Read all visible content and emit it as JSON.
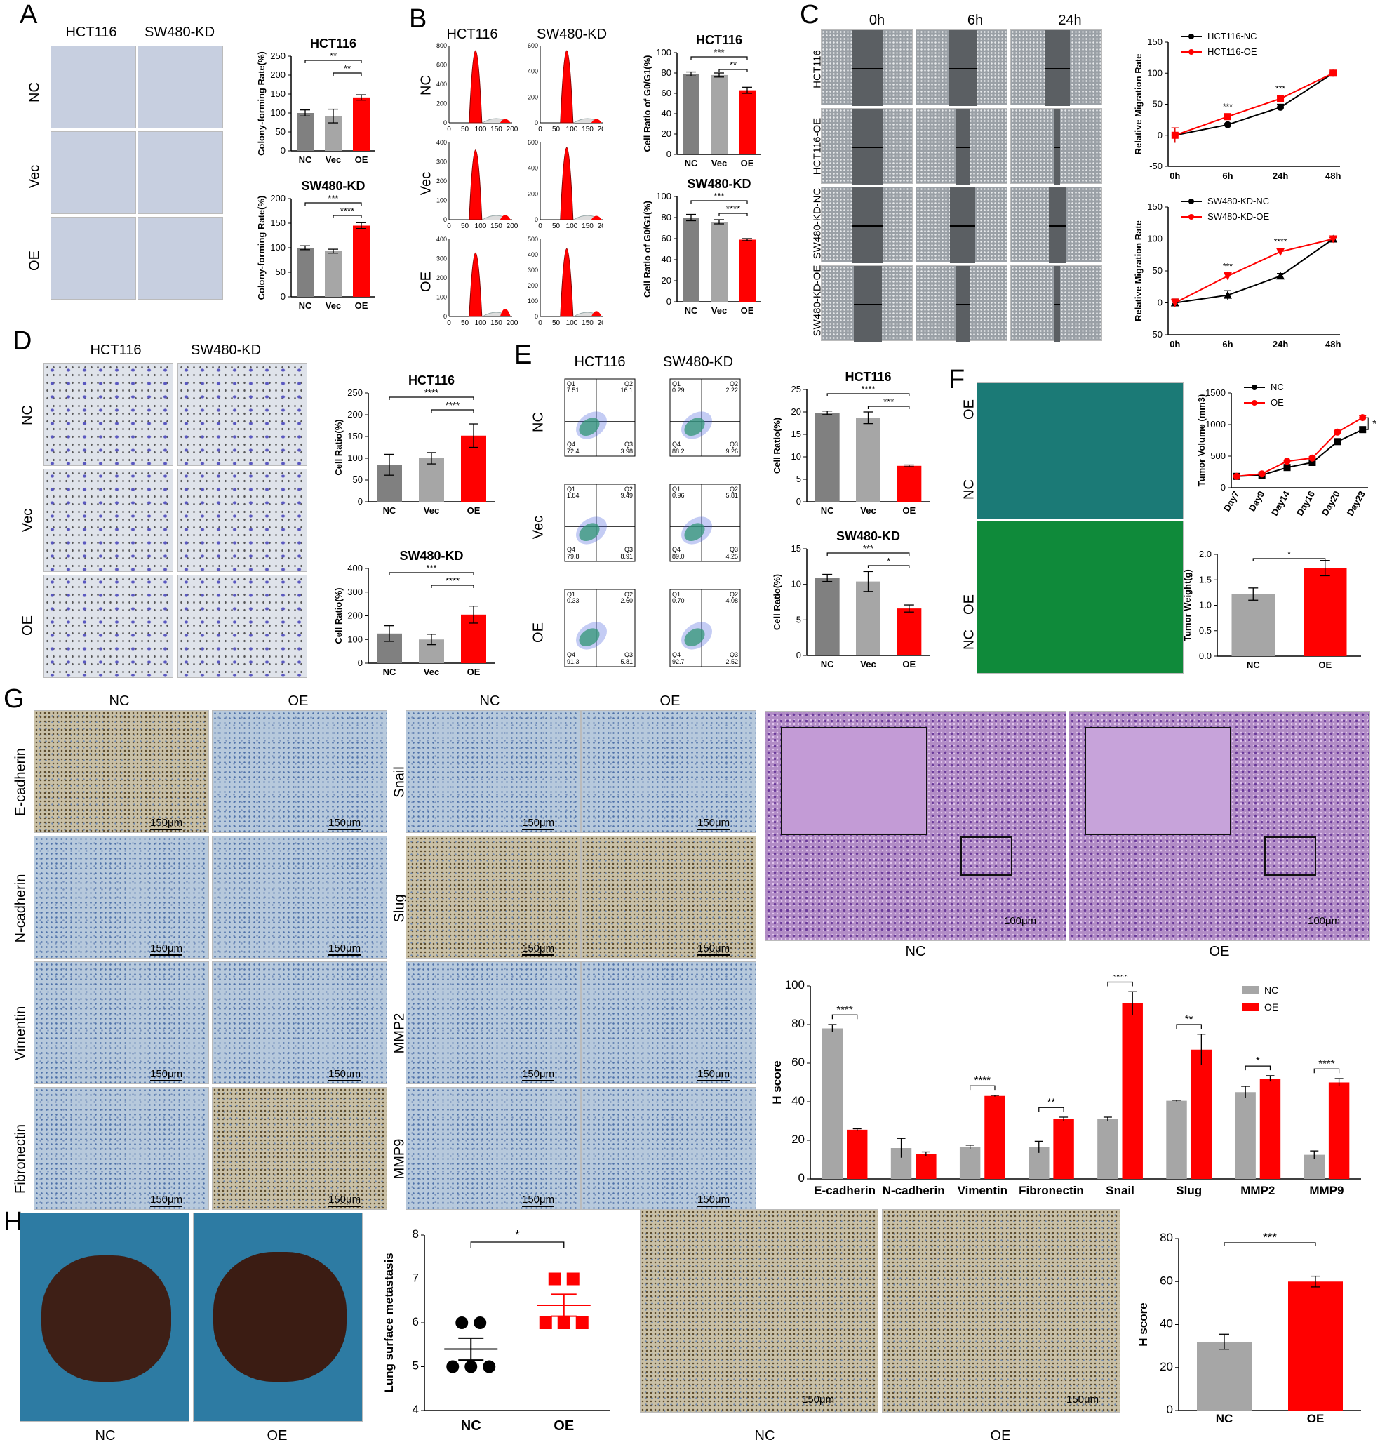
{
  "panels": {
    "A": "A",
    "B": "B",
    "C": "C",
    "D": "D",
    "E": "E",
    "F": "F",
    "G": "G",
    "H": "H"
  },
  "labels": {
    "hct116": "HCT116",
    "sw480kd": "SW480-KD",
    "nc": "NC",
    "vec": "Vec",
    "oe": "OE",
    "t0": "0h",
    "t6": "6h",
    "t24": "24h",
    "row_hct116": "HCT116",
    "row_hct116oe": "HCT116-OE",
    "row_swnc": "SW480-KD-NC",
    "row_swoe": "SW480-KD-OE",
    "ecad": "E-cadherin",
    "ncad": "N-cadherin",
    "vim": "Vimentin",
    "fib": "Fibronectin",
    "snail": "Snail",
    "slug": "Slug",
    "mmp2": "MMP2",
    "mmp9": "MMP9",
    "scale150": "150μm",
    "scale100": "100μm",
    "q1": "Q1",
    "q2": "Q2",
    "q3": "Q3",
    "q4": "Q4"
  },
  "flow": [
    [
      "7.51",
      "16.1",
      "3.98",
      "72.4"
    ],
    [
      "0.29",
      "2.22",
      "9.26",
      "88.2"
    ],
    [
      "1.84",
      "9.49",
      "8.91",
      "79.8"
    ],
    [
      "0.96",
      "5.81",
      "4.25",
      "89.0"
    ],
    [
      "0.33",
      "2.60",
      "5.81",
      "91.3"
    ],
    [
      "0.70",
      "4.08",
      "2.52",
      "92.7"
    ]
  ],
  "chart_data": [
    {
      "id": "A1",
      "type": "bar",
      "title": "HCT116",
      "ylabel": "Colony-forming Rate(%)",
      "categories": [
        "NC",
        "Vec",
        "OE"
      ],
      "values": [
        100,
        92,
        141
      ],
      "err": [
        8,
        18,
        7
      ],
      "ylim": [
        0,
        250
      ],
      "yticks": [
        0,
        50,
        100,
        150,
        200,
        250
      ],
      "colors": [
        "#808080",
        "#a6a6a6",
        "#ff0000"
      ],
      "sig": [
        {
          "a": 0,
          "b": 2,
          "label": "**"
        },
        {
          "a": 1,
          "b": 2,
          "label": "**"
        }
      ]
    },
    {
      "id": "A2",
      "type": "bar",
      "title": "SW480-KD",
      "ylabel": "Colony-forming Rate(%)",
      "categories": [
        "NC",
        "Vec",
        "OE"
      ],
      "values": [
        100,
        93,
        145
      ],
      "err": [
        4,
        4,
        6
      ],
      "ylim": [
        0,
        200
      ],
      "yticks": [
        0,
        50,
        100,
        150,
        200
      ],
      "colors": [
        "#808080",
        "#a6a6a6",
        "#ff0000"
      ],
      "sig": [
        {
          "a": 0,
          "b": 2,
          "label": "***"
        },
        {
          "a": 1,
          "b": 2,
          "label": "****"
        }
      ]
    },
    {
      "id": "B1",
      "type": "bar",
      "title": "HCT116",
      "ylabel": "Cell Ratio of G0/G1(%)",
      "categories": [
        "NC",
        "Vec",
        "OE"
      ],
      "values": [
        79,
        78,
        63
      ],
      "err": [
        2,
        2,
        3
      ],
      "ylim": [
        0,
        100
      ],
      "yticks": [
        0,
        20,
        40,
        60,
        80,
        100
      ],
      "colors": [
        "#808080",
        "#a6a6a6",
        "#ff0000"
      ],
      "sig": [
        {
          "a": 0,
          "b": 2,
          "label": "***"
        },
        {
          "a": 1,
          "b": 2,
          "label": "**"
        }
      ]
    },
    {
      "id": "B2",
      "type": "bar",
      "title": "SW480-KD",
      "ylabel": "Cell Ratio of G0/G1(%)",
      "categories": [
        "NC",
        "Vec",
        "OE"
      ],
      "values": [
        80,
        76,
        59
      ],
      "err": [
        3,
        2,
        1
      ],
      "ylim": [
        0,
        100
      ],
      "yticks": [
        0,
        20,
        40,
        60,
        80,
        100
      ],
      "colors": [
        "#808080",
        "#a6a6a6",
        "#ff0000"
      ],
      "sig": [
        {
          "a": 0,
          "b": 2,
          "label": "***"
        },
        {
          "a": 1,
          "b": 2,
          "label": "****"
        }
      ]
    },
    {
      "id": "C1",
      "type": "line",
      "ylabel": "Relative Migration Rate",
      "categories": [
        "0h",
        "6h",
        "24h",
        "48h"
      ],
      "ylim": [
        -50,
        150
      ],
      "yticks": [
        -50,
        0,
        50,
        100,
        150
      ],
      "series": [
        {
          "name": "HCT116-NC",
          "values": [
            0,
            17,
            45,
            100
          ],
          "err": [
            12,
            2,
            5,
            2
          ],
          "color": "#000000",
          "marker": "circle"
        },
        {
          "name": "HCT116-OE",
          "values": [
            0,
            30,
            59,
            100
          ],
          "err": [
            12,
            3,
            4,
            2
          ],
          "color": "#ff0000",
          "marker": "square"
        }
      ],
      "sig": [
        {
          "x": 1,
          "label": "***"
        },
        {
          "x": 2,
          "label": "***"
        }
      ]
    },
    {
      "id": "C2",
      "type": "line",
      "ylabel": "Relative Migration Rate",
      "categories": [
        "0h",
        "6h",
        "24h",
        "48h"
      ],
      "ylim": [
        -50,
        150
      ],
      "yticks": [
        -50,
        0,
        50,
        100,
        150
      ],
      "series": [
        {
          "name": "SW480-KD-NC",
          "values": [
            0,
            12,
            42,
            100
          ],
          "err": [
            6,
            7,
            4,
            2
          ],
          "color": "#000000",
          "marker": "triangle"
        },
        {
          "name": "SW480-KD-OE",
          "values": [
            0,
            42,
            80,
            100
          ],
          "err": [
            6,
            6,
            5,
            2
          ],
          "color": "#ff0000",
          "marker": "tridown"
        }
      ],
      "sig": [
        {
          "x": 1,
          "label": "***"
        },
        {
          "x": 2,
          "label": "****"
        }
      ]
    },
    {
      "id": "D1",
      "type": "bar",
      "title": "HCT116",
      "ylabel": "Cell Ratio(%)",
      "categories": [
        "NC",
        "Vec",
        "OE"
      ],
      "values": [
        85,
        100,
        152
      ],
      "err": [
        24,
        13,
        27
      ],
      "ylim": [
        0,
        250
      ],
      "yticks": [
        0,
        50,
        100,
        150,
        200,
        250
      ],
      "colors": [
        "#808080",
        "#a6a6a6",
        "#ff0000"
      ],
      "sig": [
        {
          "a": 0,
          "b": 2,
          "label": "****"
        },
        {
          "a": 1,
          "b": 2,
          "label": "****"
        }
      ]
    },
    {
      "id": "D2",
      "type": "bar",
      "title": "SW480-KD",
      "ylabel": "Cell Ratio(%)",
      "categories": [
        "NC",
        "Vec",
        "OE"
      ],
      "values": [
        125,
        100,
        205
      ],
      "err": [
        33,
        22,
        36
      ],
      "ylim": [
        0,
        400
      ],
      "yticks": [
        0,
        100,
        200,
        300,
        400
      ],
      "colors": [
        "#808080",
        "#a6a6a6",
        "#ff0000"
      ],
      "sig": [
        {
          "a": 0,
          "b": 2,
          "label": "***"
        },
        {
          "a": 1,
          "b": 2,
          "label": "****"
        }
      ]
    },
    {
      "id": "E1",
      "type": "bar",
      "title": "HCT116",
      "ylabel": "Cell Ratio(%)",
      "categories": [
        "NC",
        "Vec",
        "OE"
      ],
      "values": [
        19.8,
        18.7,
        8.0
      ],
      "err": [
        0.4,
        1.3,
        0.2
      ],
      "ylim": [
        0,
        25
      ],
      "yticks": [
        0,
        5,
        10,
        15,
        20,
        25
      ],
      "colors": [
        "#808080",
        "#a6a6a6",
        "#ff0000"
      ],
      "sig": [
        {
          "a": 0,
          "b": 2,
          "label": "****"
        },
        {
          "a": 1,
          "b": 2,
          "label": "***"
        }
      ]
    },
    {
      "id": "E2",
      "type": "bar",
      "title": "SW480-KD",
      "ylabel": "Cell Ratio(%)",
      "categories": [
        "NC",
        "Vec",
        "OE"
      ],
      "values": [
        10.9,
        10.4,
        6.6
      ],
      "err": [
        0.5,
        1.4,
        0.5
      ],
      "ylim": [
        0,
        15
      ],
      "yticks": [
        0,
        5,
        10,
        15
      ],
      "colors": [
        "#808080",
        "#a6a6a6",
        "#ff0000"
      ],
      "sig": [
        {
          "a": 0,
          "b": 2,
          "label": "***"
        },
        {
          "a": 1,
          "b": 2,
          "label": "*"
        }
      ]
    },
    {
      "id": "F1",
      "type": "line",
      "ylabel": "Tumor Volume (mm3)",
      "categories": [
        "Day7",
        "Day9",
        "Day14",
        "Day16",
        "Day20",
        "Day23"
      ],
      "ylim": [
        0,
        1500
      ],
      "yticks": [
        0,
        500,
        1000,
        1500
      ],
      "series": [
        {
          "name": "NC",
          "values": [
            180,
            200,
            320,
            400,
            730,
            920
          ],
          "err": [
            10,
            10,
            15,
            20,
            25,
            40
          ],
          "color": "#000000",
          "marker": "square"
        },
        {
          "name": "OE",
          "values": [
            180,
            220,
            420,
            470,
            880,
            1110
          ],
          "err": [
            10,
            10,
            15,
            20,
            30,
            30
          ],
          "color": "#ff0000",
          "marker": "circle"
        }
      ],
      "sig": [
        {
          "x": 5,
          "label": "*"
        }
      ]
    },
    {
      "id": "F2",
      "type": "bar",
      "ylabel": "Tumor Weight(g)",
      "categories": [
        "NC",
        "OE"
      ],
      "values": [
        1.22,
        1.73
      ],
      "err": [
        0.12,
        0.15
      ],
      "ylim": [
        0,
        2.0
      ],
      "yticks": [
        0.0,
        0.5,
        1.0,
        1.5,
        2.0
      ],
      "colors": [
        "#a6a6a6",
        "#ff0000"
      ],
      "sig": [
        {
          "a": 0,
          "b": 1,
          "label": "*"
        }
      ]
    },
    {
      "id": "G1",
      "type": "bar",
      "ylabel": "H score",
      "categories": [
        "E-cadherin",
        "N-cadherin",
        "Vimentin",
        "Fibronectin",
        "Snail",
        "Slug",
        "MMP2",
        "MMP9"
      ],
      "ylim": [
        0,
        100
      ],
      "yticks": [
        0,
        20,
        40,
        60,
        80,
        100
      ],
      "series": [
        {
          "name": "NC",
          "values": [
            78,
            16,
            16.5,
            16.5,
            31,
            40.5,
            45,
            12.5
          ],
          "err": [
            2,
            5,
            1,
            3,
            1,
            0.3,
            3,
            2
          ],
          "color": "#a6a6a6"
        },
        {
          "name": "OE",
          "values": [
            25.5,
            13,
            43,
            31,
            91,
            67,
            52,
            50
          ],
          "err": [
            0.5,
            1,
            0.3,
            1,
            6,
            8,
            1.5,
            2
          ],
          "color": "#ff0000"
        }
      ],
      "sig": [
        "****",
        "",
        "****",
        "**",
        "****",
        "**",
        "*",
        "****"
      ]
    },
    {
      "id": "H1",
      "type": "scatter",
      "ylabel": "Lung surface metastasis",
      "categories": [
        "NC",
        "OE"
      ],
      "ylim": [
        4,
        8
      ],
      "yticks": [
        4,
        5,
        6,
        7,
        8
      ],
      "series": [
        {
          "name": "NC",
          "values": [
            6,
            6,
            5,
            5,
            5
          ],
          "mean": 5.4,
          "sem": 0.25,
          "color": "#000000",
          "marker": "circle"
        },
        {
          "name": "OE",
          "values": [
            7,
            7,
            6,
            6,
            6
          ],
          "mean": 6.4,
          "sem": 0.25,
          "color": "#ff0000",
          "marker": "square"
        }
      ],
      "sig": [
        {
          "a": 0,
          "b": 1,
          "label": "*"
        }
      ]
    },
    {
      "id": "H2",
      "type": "bar",
      "ylabel": "H score",
      "categories": [
        "NC",
        "OE"
      ],
      "values": [
        32,
        60
      ],
      "err": [
        3.5,
        2.5
      ],
      "ylim": [
        0,
        80
      ],
      "yticks": [
        0,
        20,
        40,
        60,
        80
      ],
      "colors": [
        "#a6a6a6",
        "#ff0000"
      ],
      "sig": [
        {
          "a": 0,
          "b": 1,
          "label": "***"
        }
      ]
    }
  ]
}
